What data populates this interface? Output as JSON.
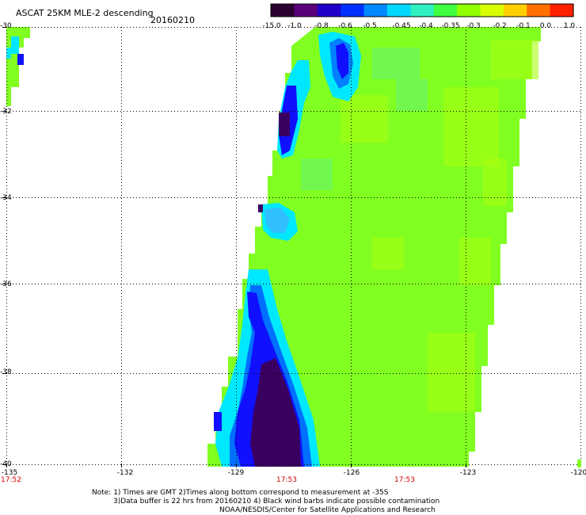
{
  "header": {
    "title": "ASCAT 25KM MLE-2 descending",
    "date": "20160210"
  },
  "colorbar": {
    "labels": [
      "-15.0",
      "-1.0",
      "-0.8",
      "-0.6",
      "-0.5",
      "-0.45",
      "-0.4",
      "-0.35",
      "-0.3",
      "-0.2",
      "-0.1",
      "0.0",
      "1.0"
    ],
    "colors": [
      "#2a0030",
      "#5a007a",
      "#2000c8",
      "#0030ff",
      "#0088ff",
      "#00d8ff",
      "#30f0c0",
      "#40ff40",
      "#90ff00",
      "#d8ff00",
      "#ffd000",
      "#ff7000",
      "#ff2000"
    ]
  },
  "map": {
    "lat_labels": [
      "-30",
      "-32",
      "-34",
      "-36",
      "-38",
      "-40"
    ],
    "lon_labels": [
      "-135",
      "-132",
      "-129",
      "-126",
      "-123",
      "-120"
    ],
    "time_labels": [
      "17:52",
      "17:53",
      "17:53"
    ]
  },
  "notes": {
    "line1": "Note: 1) Times are GMT 2)Times along bottom correspond to measurement at -35S",
    "line2": "3)Data buffer is 22 hrs from 20160210 4) Black wind barbs indicate possible contamination",
    "line3": "NOAA/NESDIS/Center for Satellite Applications and Research"
  },
  "colors": {
    "swath_base": "#80ff20",
    "swath_light": "#a8ff10",
    "cyan": "#00e8ff",
    "blue": "#1010ff",
    "dark": "#3a0060"
  }
}
